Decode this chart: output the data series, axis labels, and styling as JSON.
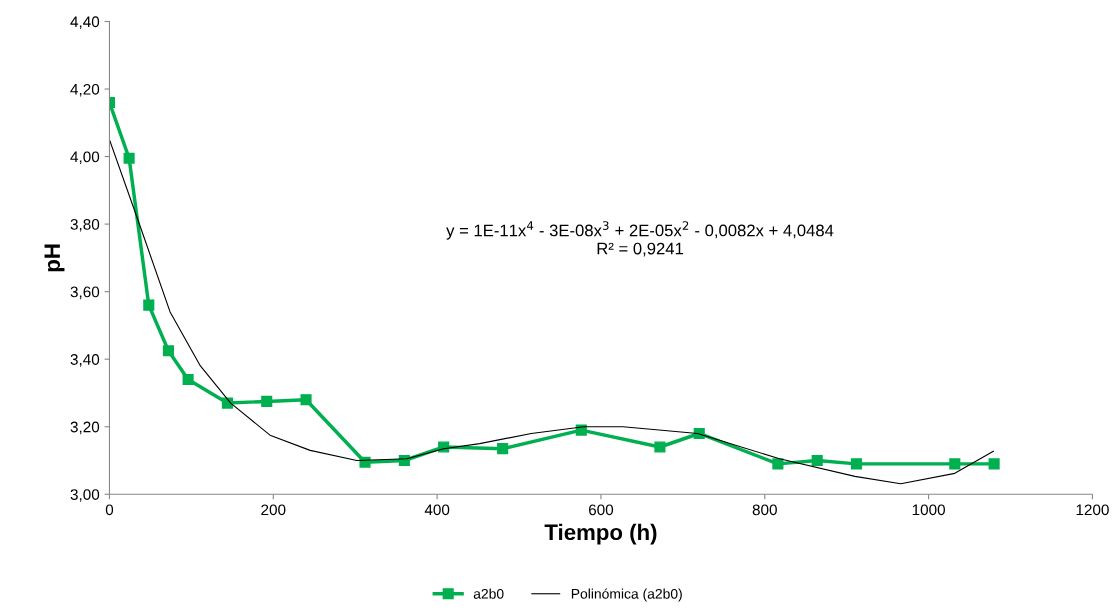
{
  "chart_data": {
    "type": "line",
    "xlabel": "Tiempo (h)",
    "ylabel": "pH",
    "xlim": [
      0,
      1200
    ],
    "xticks": [
      0,
      200,
      400,
      600,
      800,
      1000,
      1200
    ],
    "ylim": [
      3.0,
      4.4
    ],
    "yticks": [
      {
        "value": 3.0,
        "label": "3,00"
      },
      {
        "value": 3.2,
        "label": "3,20"
      },
      {
        "value": 3.4,
        "label": "3,40"
      },
      {
        "value": 3.6,
        "label": "3,60"
      },
      {
        "value": 3.8,
        "label": "3,80"
      },
      {
        "value": 4.0,
        "label": "4,00"
      },
      {
        "value": 4.2,
        "label": "4,20"
      },
      {
        "value": 4.4,
        "label": "4,40"
      }
    ],
    "grid": false,
    "legend": "bottom",
    "series": [
      {
        "name": "a2b0",
        "color": "#00b050",
        "marker": "square",
        "x": [
          0,
          24,
          48,
          72,
          96,
          144,
          192,
          240,
          312,
          360,
          408,
          480,
          576,
          672,
          720,
          816,
          864,
          912,
          1032,
          1080
        ],
        "values": [
          4.16,
          3.995,
          3.56,
          3.425,
          3.34,
          3.27,
          3.275,
          3.28,
          3.095,
          3.1,
          3.14,
          3.135,
          3.19,
          3.14,
          3.18,
          3.09,
          3.1,
          3.09,
          3.09,
          3.09
        ]
      },
      {
        "name": "Polinómica (a2b0)",
        "color": "#000000",
        "marker": "none",
        "x": [
          0,
          38,
          74,
          111,
          148,
          196,
          245,
          302,
          363,
          408,
          452,
          515,
          579,
          627,
          718,
          818,
          910,
          966,
          1032,
          1079
        ],
        "values": [
          4.05,
          3.79,
          3.54,
          3.38,
          3.27,
          3.175,
          3.13,
          3.1,
          3.105,
          3.135,
          3.15,
          3.18,
          3.2,
          3.2,
          3.18,
          3.105,
          3.053,
          3.031,
          3.062,
          3.127
        ]
      }
    ],
    "annotations": [
      "y = 1E-11x$^{4}$ - 3E-08x$^{3}$ + 2E-05x$^{2}$ - 0,0082x + 4,0484\nR² = 0,9241"
    ]
  }
}
